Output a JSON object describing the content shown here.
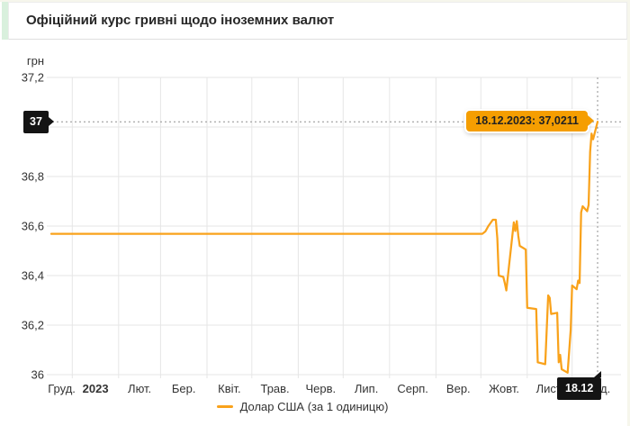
{
  "header": {
    "title": "Офіційний курс гривні щодо іноземних валют"
  },
  "colors": {
    "line": "#f9a21b",
    "tooltip_bg": "#f59e01",
    "tooltip_text": "#222222",
    "badge_bg": "#141414",
    "badge_text": "#ffffff",
    "grid": "#e6e6e6",
    "crosshair": "#8f8f8f",
    "axis_text": "#333333",
    "header_accent": "#d9f0dd"
  },
  "chart_data": {
    "type": "line",
    "title": "Офіційний курс гривні щодо іноземних валют",
    "unit_label": "грн",
    "x_range": [
      "2022-12-18",
      "2023-12-18"
    ],
    "y_range": [
      36,
      37.2
    ],
    "grid": true,
    "legend_position": "bottom",
    "y_ticks": [
      {
        "value": 36,
        "label": "36"
      },
      {
        "value": 36.2,
        "label": "36,2"
      },
      {
        "value": 36.4,
        "label": "36,4"
      },
      {
        "value": 36.6,
        "label": "36,6"
      },
      {
        "value": 36.8,
        "label": "36,8"
      },
      {
        "value": 37,
        "label": "37"
      },
      {
        "value": 37.2,
        "label": "37,2"
      }
    ],
    "x_labels": [
      {
        "label": "Груд.",
        "bold": false
      },
      {
        "label": "2023",
        "bold": true
      },
      {
        "label": "Лют.",
        "bold": false
      },
      {
        "label": "Бер.",
        "bold": false
      },
      {
        "label": "Квіт.",
        "bold": false
      },
      {
        "label": "Трав.",
        "bold": false
      },
      {
        "label": "Черв.",
        "bold": false
      },
      {
        "label": "Лип.",
        "bold": false
      },
      {
        "label": "Серп.",
        "bold": false
      },
      {
        "label": "Вер.",
        "bold": false
      },
      {
        "label": "Жовт.",
        "bold": false
      },
      {
        "label": "Лист.",
        "bold": false
      },
      {
        "label": "Груд.",
        "bold": false
      }
    ],
    "series": [
      {
        "name": "Долар США (за 1 одиницю)",
        "color": "#f9a21b",
        "points": [
          [
            "2022-12-18",
            36.5686
          ],
          [
            "2023-10-02",
            36.5686
          ],
          [
            "2023-10-04",
            36.578
          ],
          [
            "2023-10-06",
            36.6
          ],
          [
            "2023-10-09",
            36.6253
          ],
          [
            "2023-10-11",
            36.6253
          ],
          [
            "2023-10-12",
            36.55
          ],
          [
            "2023-10-13",
            36.4
          ],
          [
            "2023-10-16",
            36.395
          ],
          [
            "2023-10-17",
            36.37
          ],
          [
            "2023-10-18",
            36.34
          ],
          [
            "2023-10-20",
            36.45
          ],
          [
            "2023-10-23",
            36.615
          ],
          [
            "2023-10-24",
            36.58
          ],
          [
            "2023-10-25",
            36.62
          ],
          [
            "2023-10-26",
            36.56
          ],
          [
            "2023-10-27",
            36.52
          ],
          [
            "2023-10-31",
            36.505
          ],
          [
            "2023-11-01",
            36.27
          ],
          [
            "2023-11-07",
            36.265
          ],
          [
            "2023-11-08",
            36.05
          ],
          [
            "2023-11-13",
            36.042
          ],
          [
            "2023-11-15",
            36.32
          ],
          [
            "2023-11-16",
            36.31
          ],
          [
            "2023-11-17",
            36.245
          ],
          [
            "2023-11-21",
            36.25
          ],
          [
            "2023-11-22",
            36.05
          ],
          [
            "2023-11-23",
            36.08
          ],
          [
            "2023-11-24",
            36.022
          ],
          [
            "2023-11-28",
            36.008
          ],
          [
            "2023-11-30",
            36.18
          ],
          [
            "2023-12-01",
            36.36
          ],
          [
            "2023-12-04",
            36.345
          ],
          [
            "2023-12-05",
            36.38
          ],
          [
            "2023-12-06",
            36.37
          ],
          [
            "2023-12-07",
            36.655
          ],
          [
            "2023-12-08",
            36.68
          ],
          [
            "2023-12-11",
            36.66
          ],
          [
            "2023-12-12",
            36.685
          ],
          [
            "2023-12-13",
            36.9
          ],
          [
            "2023-12-14",
            36.973
          ],
          [
            "2023-12-15",
            36.95
          ],
          [
            "2023-12-18",
            37.0211
          ]
        ]
      }
    ],
    "highlight": {
      "date": "2023-12-18",
      "value": 37.0211,
      "tooltip": "18.12.2023: 37,0211",
      "y_badge_label": "37",
      "x_badge_label": "18.12"
    }
  }
}
